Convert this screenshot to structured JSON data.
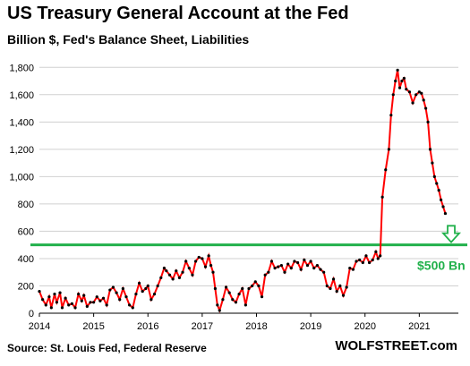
{
  "chart_data": {
    "type": "line",
    "title": "US Treasury General Account at the Fed",
    "subtitle": "Billion $, Fed's Balance Sheet, Liabilities",
    "source": "Source: St. Louis Fed, Federal Reserve",
    "brand": "WOLFSTREET.com",
    "xlabel": "",
    "ylabel": "",
    "ylim": [
      0,
      1900
    ],
    "xlim": [
      2014.0,
      2021.72
    ],
    "y_ticks": [
      0,
      200,
      400,
      600,
      800,
      1000,
      1200,
      1400,
      1600,
      1800
    ],
    "y_tick_labels": [
      "0",
      "200",
      "400",
      "600",
      "800",
      "1,000",
      "1,200",
      "1,400",
      "1,600",
      "1,800"
    ],
    "x_ticks": [
      2014,
      2015,
      2016,
      2017,
      2018,
      2019,
      2020,
      2021
    ],
    "x_tick_labels": [
      "2014",
      "2015",
      "2016",
      "2017",
      "2018",
      "2019",
      "2020",
      "2021"
    ],
    "grid": "horizontal",
    "line_color": "#ff0000",
    "marker_color": "#000000",
    "reference_line": {
      "value": 500,
      "label": "$500 Bn",
      "color": "#22b14c"
    },
    "arrow": {
      "color": "#22b14c",
      "direction": "down"
    },
    "series": [
      {
        "points": [
          [
            2014.0,
            160
          ],
          [
            2014.06,
            100
          ],
          [
            2014.12,
            60
          ],
          [
            2014.18,
            120
          ],
          [
            2014.22,
            40
          ],
          [
            2014.28,
            140
          ],
          [
            2014.32,
            80
          ],
          [
            2014.38,
            150
          ],
          [
            2014.42,
            40
          ],
          [
            2014.48,
            110
          ],
          [
            2014.54,
            60
          ],
          [
            2014.6,
            70
          ],
          [
            2014.66,
            40
          ],
          [
            2014.72,
            140
          ],
          [
            2014.78,
            90
          ],
          [
            2014.82,
            130
          ],
          [
            2014.88,
            50
          ],
          [
            2014.94,
            80
          ],
          [
            2015.0,
            80
          ],
          [
            2015.06,
            120
          ],
          [
            2015.12,
            90
          ],
          [
            2015.18,
            110
          ],
          [
            2015.24,
            60
          ],
          [
            2015.3,
            170
          ],
          [
            2015.36,
            190
          ],
          [
            2015.42,
            150
          ],
          [
            2015.48,
            100
          ],
          [
            2015.54,
            180
          ],
          [
            2015.6,
            120
          ],
          [
            2015.66,
            60
          ],
          [
            2015.72,
            40
          ],
          [
            2015.78,
            140
          ],
          [
            2015.84,
            220
          ],
          [
            2015.9,
            160
          ],
          [
            2015.96,
            180
          ],
          [
            2016.0,
            200
          ],
          [
            2016.06,
            100
          ],
          [
            2016.12,
            140
          ],
          [
            2016.18,
            200
          ],
          [
            2016.24,
            260
          ],
          [
            2016.3,
            330
          ],
          [
            2016.34,
            310
          ],
          [
            2016.4,
            280
          ],
          [
            2016.46,
            250
          ],
          [
            2016.52,
            310
          ],
          [
            2016.58,
            260
          ],
          [
            2016.64,
            300
          ],
          [
            2016.7,
            380
          ],
          [
            2016.76,
            330
          ],
          [
            2016.82,
            280
          ],
          [
            2016.88,
            380
          ],
          [
            2016.94,
            410
          ],
          [
            2017.0,
            400
          ],
          [
            2017.06,
            340
          ],
          [
            2017.12,
            420
          ],
          [
            2017.16,
            350
          ],
          [
            2017.2,
            300
          ],
          [
            2017.24,
            180
          ],
          [
            2017.28,
            60
          ],
          [
            2017.32,
            20
          ],
          [
            2017.38,
            100
          ],
          [
            2017.44,
            190
          ],
          [
            2017.5,
            150
          ],
          [
            2017.56,
            100
          ],
          [
            2017.62,
            80
          ],
          [
            2017.68,
            140
          ],
          [
            2017.74,
            180
          ],
          [
            2017.8,
            60
          ],
          [
            2017.86,
            180
          ],
          [
            2017.92,
            200
          ],
          [
            2017.98,
            230
          ],
          [
            2018.04,
            200
          ],
          [
            2018.1,
            120
          ],
          [
            2018.16,
            280
          ],
          [
            2018.22,
            300
          ],
          [
            2018.28,
            380
          ],
          [
            2018.34,
            330
          ],
          [
            2018.4,
            340
          ],
          [
            2018.46,
            350
          ],
          [
            2018.52,
            300
          ],
          [
            2018.58,
            360
          ],
          [
            2018.64,
            330
          ],
          [
            2018.7,
            380
          ],
          [
            2018.76,
            370
          ],
          [
            2018.82,
            320
          ],
          [
            2018.88,
            390
          ],
          [
            2018.94,
            350
          ],
          [
            2019.0,
            380
          ],
          [
            2019.06,
            330
          ],
          [
            2019.12,
            350
          ],
          [
            2019.18,
            320
          ],
          [
            2019.24,
            300
          ],
          [
            2019.3,
            200
          ],
          [
            2019.36,
            180
          ],
          [
            2019.42,
            250
          ],
          [
            2019.48,
            160
          ],
          [
            2019.54,
            200
          ],
          [
            2019.6,
            130
          ],
          [
            2019.66,
            190
          ],
          [
            2019.72,
            330
          ],
          [
            2019.78,
            320
          ],
          [
            2019.84,
            380
          ],
          [
            2019.9,
            390
          ],
          [
            2019.96,
            370
          ],
          [
            2020.02,
            420
          ],
          [
            2020.08,
            370
          ],
          [
            2020.14,
            390
          ],
          [
            2020.2,
            450
          ],
          [
            2020.24,
            400
          ],
          [
            2020.28,
            420
          ],
          [
            2020.32,
            850
          ],
          [
            2020.38,
            1050
          ],
          [
            2020.44,
            1200
          ],
          [
            2020.48,
            1450
          ],
          [
            2020.52,
            1600
          ],
          [
            2020.56,
            1700
          ],
          [
            2020.6,
            1780
          ],
          [
            2020.64,
            1650
          ],
          [
            2020.68,
            1700
          ],
          [
            2020.72,
            1720
          ],
          [
            2020.76,
            1640
          ],
          [
            2020.82,
            1620
          ],
          [
            2020.88,
            1540
          ],
          [
            2020.94,
            1600
          ],
          [
            2021.0,
            1620
          ],
          [
            2021.04,
            1610
          ],
          [
            2021.08,
            1560
          ],
          [
            2021.12,
            1500
          ],
          [
            2021.16,
            1400
          ],
          [
            2021.2,
            1200
          ],
          [
            2021.24,
            1100
          ],
          [
            2021.28,
            1000
          ],
          [
            2021.32,
            950
          ],
          [
            2021.36,
            900
          ],
          [
            2021.4,
            830
          ],
          [
            2021.44,
            780
          ],
          [
            2021.48,
            730
          ]
        ]
      }
    ]
  }
}
